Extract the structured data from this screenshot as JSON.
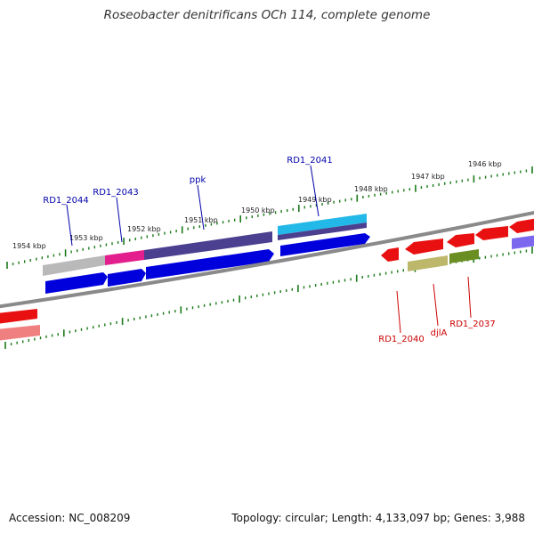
{
  "title": "Roseobacter denitrificans OCh 114, complete genome",
  "footer": {
    "accession": "Accession: NC_008209",
    "summary": "Topology: circular; Length: 4,133,097 bp; Genes: 3,988"
  },
  "colors": {
    "backbone": "#808080",
    "tick": "#1a7a1a",
    "label_blue": "#0000aa",
    "label_red": "#cc0000"
  },
  "scale_labels": [
    "1954 kbp",
    "1953 kbp",
    "1952 kbp",
    "1951 kbp",
    "1950 kbp",
    "1949 kbp",
    "1948 kbp",
    "1947 kbp",
    "1946 kbp"
  ],
  "gene_labels": [
    {
      "id": "rd1-2044",
      "text": "RD1_2044",
      "color": "#0000aa"
    },
    {
      "id": "rd1-2043",
      "text": "RD1_2043",
      "color": "#0000aa"
    },
    {
      "id": "ppk",
      "text": "ppk",
      "color": "#0000aa"
    },
    {
      "id": "rd1-2041",
      "text": "RD1_2041",
      "color": "#0000aa"
    },
    {
      "id": "rd1-2040",
      "text": "RD1_2040",
      "color": "#cc0000"
    },
    {
      "id": "djla",
      "text": "djlA",
      "color": "#cc0000"
    },
    {
      "id": "rd1-2037",
      "text": "RD1_2037",
      "color": "#cc0000"
    }
  ]
}
